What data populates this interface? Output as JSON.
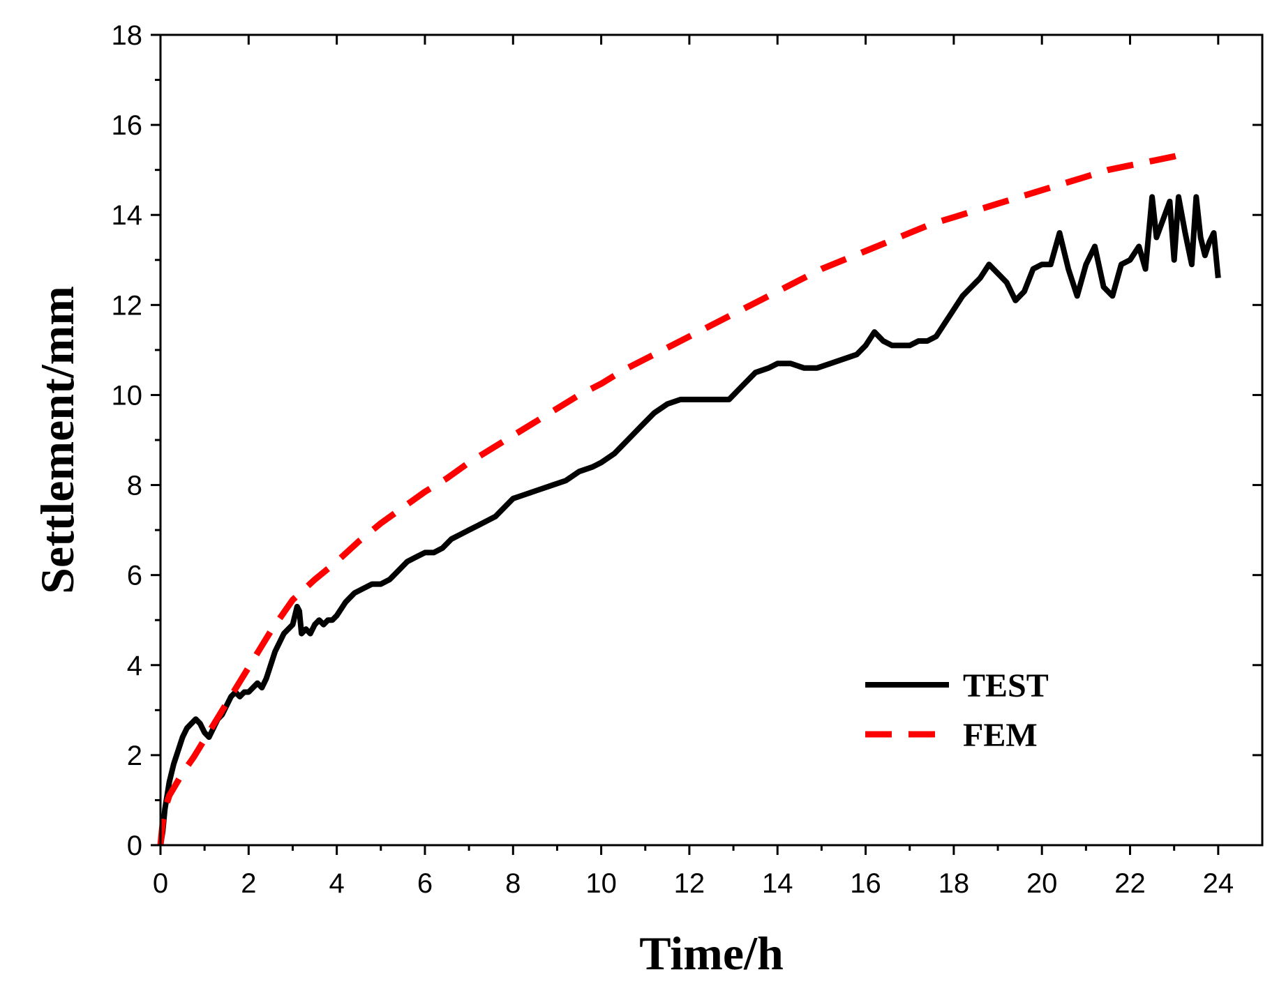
{
  "chart_data": {
    "type": "line",
    "title": "",
    "xlabel": "Time/h",
    "ylabel": "Settlement/mm",
    "xlim": [
      0,
      25
    ],
    "ylim": [
      0,
      18
    ],
    "xticks": [
      0,
      2,
      4,
      6,
      8,
      10,
      12,
      14,
      16,
      18,
      20,
      22,
      24
    ],
    "xtick_labels": [
      "0",
      "2",
      "4",
      "6",
      "8",
      "10",
      "12",
      "14",
      "16",
      "18",
      "20",
      "22",
      "24"
    ],
    "yticks": [
      0,
      2,
      4,
      6,
      8,
      10,
      12,
      14,
      16,
      18
    ],
    "ytick_labels": [
      "0",
      "2",
      "4",
      "6",
      "8",
      "10",
      "12",
      "14",
      "16",
      "18"
    ],
    "grid": false,
    "legend_position": "bottom-right",
    "series": [
      {
        "name": "TEST",
        "color": "#000000",
        "style": "solid",
        "x": [
          0,
          0.05,
          0.1,
          0.2,
          0.3,
          0.4,
          0.5,
          0.6,
          0.7,
          0.8,
          0.9,
          1.0,
          1.1,
          1.2,
          1.3,
          1.4,
          1.5,
          1.6,
          1.7,
          1.8,
          1.9,
          2.0,
          2.1,
          2.2,
          2.3,
          2.4,
          2.5,
          2.6,
          2.7,
          2.8,
          2.9,
          3.0,
          3.1,
          3.15,
          3.2,
          3.3,
          3.4,
          3.5,
          3.6,
          3.7,
          3.8,
          3.9,
          4.0,
          4.2,
          4.4,
          4.6,
          4.8,
          5.0,
          5.2,
          5.4,
          5.6,
          5.8,
          6.0,
          6.2,
          6.4,
          6.6,
          6.8,
          7.0,
          7.2,
          7.4,
          7.6,
          7.8,
          8.0,
          8.3,
          8.6,
          8.9,
          9.2,
          9.5,
          9.8,
          10.0,
          10.3,
          10.6,
          10.9,
          11.2,
          11.5,
          11.8,
          12.0,
          12.3,
          12.6,
          12.9,
          13.2,
          13.5,
          13.8,
          14.0,
          14.3,
          14.6,
          14.9,
          15.2,
          15.5,
          15.8,
          16.0,
          16.2,
          16.4,
          16.6,
          16.8,
          17.0,
          17.2,
          17.4,
          17.6,
          17.8,
          18.0,
          18.2,
          18.4,
          18.6,
          18.8,
          19.0,
          19.2,
          19.4,
          19.6,
          19.8,
          20.0,
          20.2,
          20.4,
          20.6,
          20.8,
          21.0,
          21.2,
          21.4,
          21.6,
          21.8,
          22.0,
          22.2,
          22.35,
          22.5,
          22.6,
          22.75,
          22.9,
          23.0,
          23.1,
          23.25,
          23.4,
          23.5,
          23.6,
          23.7,
          23.8,
          23.9,
          24.0
        ],
        "y": [
          0,
          0.3,
          0.8,
          1.4,
          1.8,
          2.1,
          2.4,
          2.6,
          2.7,
          2.8,
          2.7,
          2.5,
          2.4,
          2.6,
          2.8,
          2.9,
          3.1,
          3.3,
          3.4,
          3.3,
          3.4,
          3.4,
          3.5,
          3.6,
          3.5,
          3.7,
          4.0,
          4.3,
          4.5,
          4.7,
          4.8,
          4.9,
          5.3,
          5.2,
          4.7,
          4.8,
          4.7,
          4.9,
          5.0,
          4.9,
          5.0,
          5.0,
          5.1,
          5.4,
          5.6,
          5.7,
          5.8,
          5.8,
          5.9,
          6.1,
          6.3,
          6.4,
          6.5,
          6.5,
          6.6,
          6.8,
          6.9,
          7.0,
          7.1,
          7.2,
          7.3,
          7.5,
          7.7,
          7.8,
          7.9,
          8.0,
          8.1,
          8.3,
          8.4,
          8.5,
          8.7,
          9.0,
          9.3,
          9.6,
          9.8,
          9.9,
          9.9,
          9.9,
          9.9,
          9.9,
          10.2,
          10.5,
          10.6,
          10.7,
          10.7,
          10.6,
          10.6,
          10.7,
          10.8,
          10.9,
          11.1,
          11.4,
          11.2,
          11.1,
          11.1,
          11.1,
          11.2,
          11.2,
          11.3,
          11.6,
          11.9,
          12.2,
          12.4,
          12.6,
          12.9,
          12.7,
          12.5,
          12.1,
          12.3,
          12.8,
          12.9,
          12.9,
          13.6,
          12.8,
          12.2,
          12.9,
          13.3,
          12.4,
          12.2,
          12.9,
          13.0,
          13.3,
          12.8,
          14.4,
          13.5,
          13.9,
          14.3,
          13.0,
          14.4,
          13.6,
          12.9,
          14.4,
          13.5,
          13.1,
          13.4,
          13.6,
          12.6
        ]
      },
      {
        "name": "FEM",
        "color": "#ff0000",
        "style": "dashed",
        "x": [
          0,
          0.05,
          0.1,
          0.2,
          0.35,
          0.5,
          0.75,
          1.0,
          1.25,
          1.5,
          1.75,
          2.0,
          2.25,
          2.5,
          2.75,
          3.0,
          3.5,
          4.0,
          4.5,
          5.0,
          5.5,
          6.0,
          6.5,
          7.0,
          7.5,
          8.0,
          8.5,
          9.0,
          9.5,
          10.0,
          10.5,
          11.0,
          11.5,
          12.0,
          12.5,
          13.0,
          13.5,
          14.0,
          14.5,
          15.0,
          15.5,
          16.0,
          16.5,
          17.0,
          17.5,
          18.0,
          18.5,
          19.0,
          19.5,
          20.0,
          20.5,
          21.0,
          21.5,
          22.0,
          22.5,
          23.0,
          23.2
        ],
        "y": [
          0,
          0.5,
          0.8,
          1.1,
          1.35,
          1.6,
          1.95,
          2.35,
          2.75,
          3.15,
          3.55,
          3.95,
          4.35,
          4.75,
          5.1,
          5.45,
          5.9,
          6.3,
          6.75,
          7.15,
          7.5,
          7.85,
          8.15,
          8.5,
          8.8,
          9.1,
          9.4,
          9.7,
          10.0,
          10.25,
          10.55,
          10.8,
          11.05,
          11.3,
          11.55,
          11.8,
          12.05,
          12.3,
          12.55,
          12.8,
          13.0,
          13.2,
          13.4,
          13.6,
          13.8,
          13.95,
          14.1,
          14.25,
          14.4,
          14.55,
          14.7,
          14.85,
          15.0,
          15.1,
          15.2,
          15.3,
          15.35
        ]
      }
    ]
  }
}
